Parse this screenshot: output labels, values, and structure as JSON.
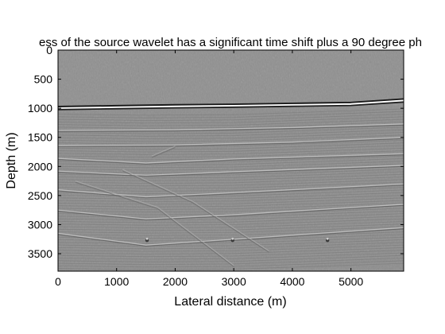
{
  "chart_data": {
    "type": "heatmap",
    "title": "ess of the source wavelet has a significant time shift plus a 90 degree ph",
    "xlabel": "Lateral distance (m)",
    "ylabel": "Depth (m)",
    "xlim": [
      0,
      5900
    ],
    "ylim": [
      0,
      3800
    ],
    "y_reversed": true,
    "x_ticks": [
      0,
      1000,
      2000,
      3000,
      4000,
      5000
    ],
    "y_ticks": [
      0,
      500,
      1000,
      1500,
      2000,
      2500,
      3000,
      3500
    ],
    "colormap": "gray",
    "background_color": "#8c8c8c",
    "features": {
      "seafloor_reflector_depth": {
        "x": [
          0,
          1000,
          2000,
          3000,
          4000,
          5000,
          5900
        ],
        "depth": [
          1000,
          985,
          970,
          960,
          945,
          930,
          870
        ]
      },
      "reflector_lines": [
        {
          "x": [
            0,
            2000,
            4000,
            5900
          ],
          "depth": [
            1380,
            1370,
            1330,
            1270
          ]
        },
        {
          "x": [
            0,
            2000,
            4000,
            5900
          ],
          "depth": [
            1640,
            1630,
            1580,
            1500
          ]
        },
        {
          "x": [
            0,
            1500,
            3000,
            5900
          ],
          "depth": [
            1860,
            1940,
            1870,
            1780
          ]
        },
        {
          "x": [
            0,
            1500,
            3000,
            5900
          ],
          "depth": [
            2080,
            2150,
            2090,
            1980
          ]
        },
        {
          "x": [
            0,
            1500,
            3000,
            5900
          ],
          "depth": [
            2400,
            2520,
            2450,
            2300
          ]
        },
        {
          "x": [
            0,
            1500,
            3000,
            5900
          ],
          "depth": [
            2750,
            2900,
            2830,
            2650
          ]
        },
        {
          "x": [
            0,
            1500,
            3000,
            5900
          ],
          "depth": [
            3150,
            3350,
            3250,
            3050
          ]
        }
      ],
      "dipping_events": [
        {
          "x": [
            300,
            1700,
            3000
          ],
          "depth": [
            2250,
            2700,
            3700
          ]
        },
        {
          "x": [
            1100,
            2300,
            3600
          ],
          "depth": [
            2050,
            2600,
            3450
          ]
        },
        {
          "x": [
            1600,
            2000
          ],
          "depth": [
            1820,
            1650
          ]
        }
      ],
      "point_diffractors": [
        {
          "x": 1520,
          "depth": 3270
        },
        {
          "x": 2980,
          "depth": 3270
        },
        {
          "x": 4600,
          "depth": 3270
        }
      ]
    }
  }
}
